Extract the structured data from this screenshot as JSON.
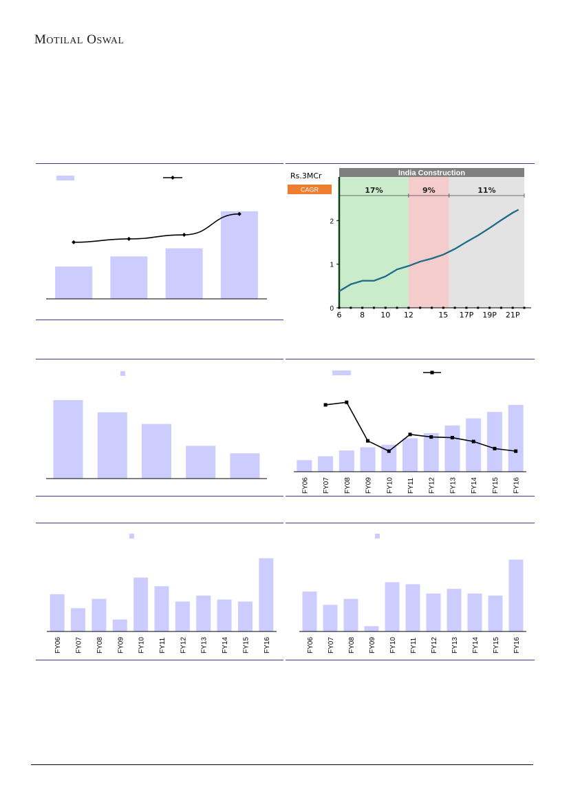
{
  "header": {
    "brand_first": "M",
    "brand_rest_1": "OTILAL",
    "brand_first_2": "O",
    "brand_rest_2": "SWAL"
  },
  "colors": {
    "bar": "#ccccff",
    "rule": "#3b3b8c",
    "line": "#000000",
    "green": "#cbeccb",
    "red": "#f5cccc",
    "grey": "#e3e3e3",
    "teal": "#1f6f8b",
    "cagr": "#ed7d31",
    "titlebar": "#7f7f7f"
  },
  "chart_data": [
    {
      "id": "chart1",
      "type": "bar",
      "categories": [
        "",
        "",
        "",
        ""
      ],
      "values": [
        48,
        63,
        75,
        130
      ],
      "ylim": [
        0,
        140
      ],
      "series": [
        {
          "type": "bar",
          "values": [
            48,
            63,
            75,
            130
          ]
        },
        {
          "type": "line",
          "values": [
            84,
            89,
            95,
            126
          ]
        }
      ],
      "legend": "top",
      "grid": false
    },
    {
      "id": "chart2",
      "type": "line",
      "title": "India Construction",
      "ylabel": "Rs.3MCr",
      "label_box": "CAGR",
      "x_ticks": [
        "6",
        "8",
        "10",
        "12",
        "15",
        "17P",
        "19P",
        "21P"
      ],
      "y_ticks": [
        "0",
        "1",
        "2"
      ],
      "ylim": [
        0,
        3.0
      ],
      "xlim": [
        6,
        22
      ],
      "regions": [
        {
          "from": 6,
          "to": 12,
          "label": "17%"
        },
        {
          "from": 12,
          "to": 15.5,
          "label": "9%"
        },
        {
          "from": 15.5,
          "to": 22,
          "label": "11%"
        }
      ],
      "x": [
        6,
        7,
        8,
        9,
        10,
        11,
        12,
        13,
        14,
        15,
        16,
        17,
        18,
        19,
        20,
        21,
        21.5
      ],
      "values": [
        0.38,
        0.54,
        0.62,
        0.62,
        0.72,
        0.88,
        0.96,
        1.06,
        1.13,
        1.22,
        1.35,
        1.51,
        1.66,
        1.83,
        2.01,
        2.18,
        2.25
      ],
      "grid": false
    },
    {
      "id": "chart3",
      "type": "bar",
      "categories": [
        "",
        "",
        "",
        "",
        ""
      ],
      "values": [
        115,
        97,
        80,
        48,
        37
      ],
      "ylim": [
        0,
        125
      ],
      "legend": "top",
      "grid": false
    },
    {
      "id": "chart4",
      "type": "bar",
      "categories": [
        "FY06",
        "FY07",
        "FY08",
        "FY09",
        "FY10",
        "FY11",
        "FY12",
        "FY13",
        "FY14",
        "FY15",
        "FY16"
      ],
      "series": [
        {
          "type": "bar",
          "values": [
            18,
            24,
            33,
            38,
            42,
            52,
            60,
            72,
            83,
            93,
            104
          ]
        },
        {
          "type": "line",
          "values": [
            null,
            104,
            108,
            48,
            32,
            58,
            54,
            53,
            47,
            36,
            32
          ]
        }
      ],
      "ylim": [
        0,
        120
      ],
      "legend": "top",
      "grid": false
    },
    {
      "id": "chart5",
      "type": "bar",
      "categories": [
        "FY06",
        "FY07",
        "FY08",
        "FY09",
        "FY10",
        "FY11",
        "FY12",
        "FY13",
        "FY14",
        "FY15",
        "FY16"
      ],
      "values": [
        56,
        35,
        49,
        18,
        81,
        68,
        45,
        54,
        48,
        45,
        110
      ],
      "ylim": [
        0,
        120
      ],
      "legend": "top",
      "grid": false
    },
    {
      "id": "chart6",
      "type": "bar",
      "categories": [
        "FY06",
        "FY07",
        "FY08",
        "FY09",
        "FY10",
        "FY11",
        "FY12",
        "FY13",
        "FY14",
        "FY15",
        "FY16"
      ],
      "values": [
        60,
        40,
        49,
        8,
        74,
        71,
        57,
        64,
        57,
        54,
        108
      ],
      "ylim": [
        0,
        120
      ],
      "legend": "top",
      "grid": false
    }
  ]
}
